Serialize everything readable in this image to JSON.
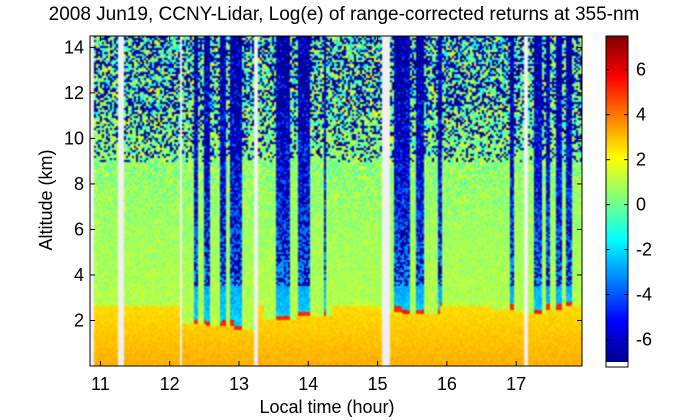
{
  "chart_data": {
    "type": "heatmap",
    "title": "2008 Jun19, CCNY-Lidar, Log(e) of range-corrected returns at 355-nm",
    "xlabel": "Local time (hour)",
    "ylabel": "Altitude (km)",
    "xlim": [
      10.85,
      17.95
    ],
    "ylim": [
      0,
      14.5
    ],
    "x_ticks": [
      "11",
      "12",
      "13",
      "14",
      "15",
      "16",
      "17"
    ],
    "y_ticks": [
      "2",
      "4",
      "6",
      "8",
      "10",
      "12",
      "14"
    ],
    "colorbar": {
      "range": [
        -7,
        7.5
      ],
      "ticks": [
        "-6",
        "-4",
        "-2",
        "0",
        "2",
        "4",
        "6"
      ],
      "colormap": "jet"
    },
    "data_gaps_hours": [
      [
        11.26,
        11.33
      ],
      [
        12.16,
        12.19
      ],
      [
        13.22,
        13.27
      ],
      [
        15.07,
        15.19
      ],
      [
        17.12,
        17.17
      ]
    ],
    "boundary_layer_top_km": [
      [
        12.42,
        1.85
      ],
      [
        12.65,
        1.75
      ],
      [
        12.85,
        1.8
      ],
      [
        13.0,
        1.6
      ],
      [
        13.6,
        2.0
      ],
      [
        13.75,
        2.0
      ],
      [
        13.9,
        2.2
      ],
      [
        14.1,
        2.2
      ],
      [
        15.28,
        2.4
      ],
      [
        15.45,
        2.3
      ],
      [
        15.65,
        2.3
      ],
      [
        16.9,
        2.5
      ],
      [
        17.05,
        2.4
      ],
      [
        17.3,
        2.3
      ],
      [
        17.55,
        2.5
      ],
      [
        17.75,
        2.6
      ],
      [
        17.9,
        2.6
      ]
    ],
    "clear_air_columns_hours": [
      [
        12.36,
        12.42
      ],
      [
        12.5,
        12.58
      ],
      [
        12.72,
        12.82
      ],
      [
        12.88,
        13.05
      ],
      [
        13.52,
        13.75
      ],
      [
        13.84,
        14.02
      ],
      [
        14.22,
        14.27
      ],
      [
        15.25,
        15.46
      ],
      [
        15.56,
        15.68
      ],
      [
        15.86,
        15.92
      ],
      [
        16.92,
        16.98
      ],
      [
        17.25,
        17.36
      ],
      [
        17.42,
        17.5
      ],
      [
        17.58,
        17.66
      ],
      [
        17.72,
        17.82
      ]
    ]
  }
}
